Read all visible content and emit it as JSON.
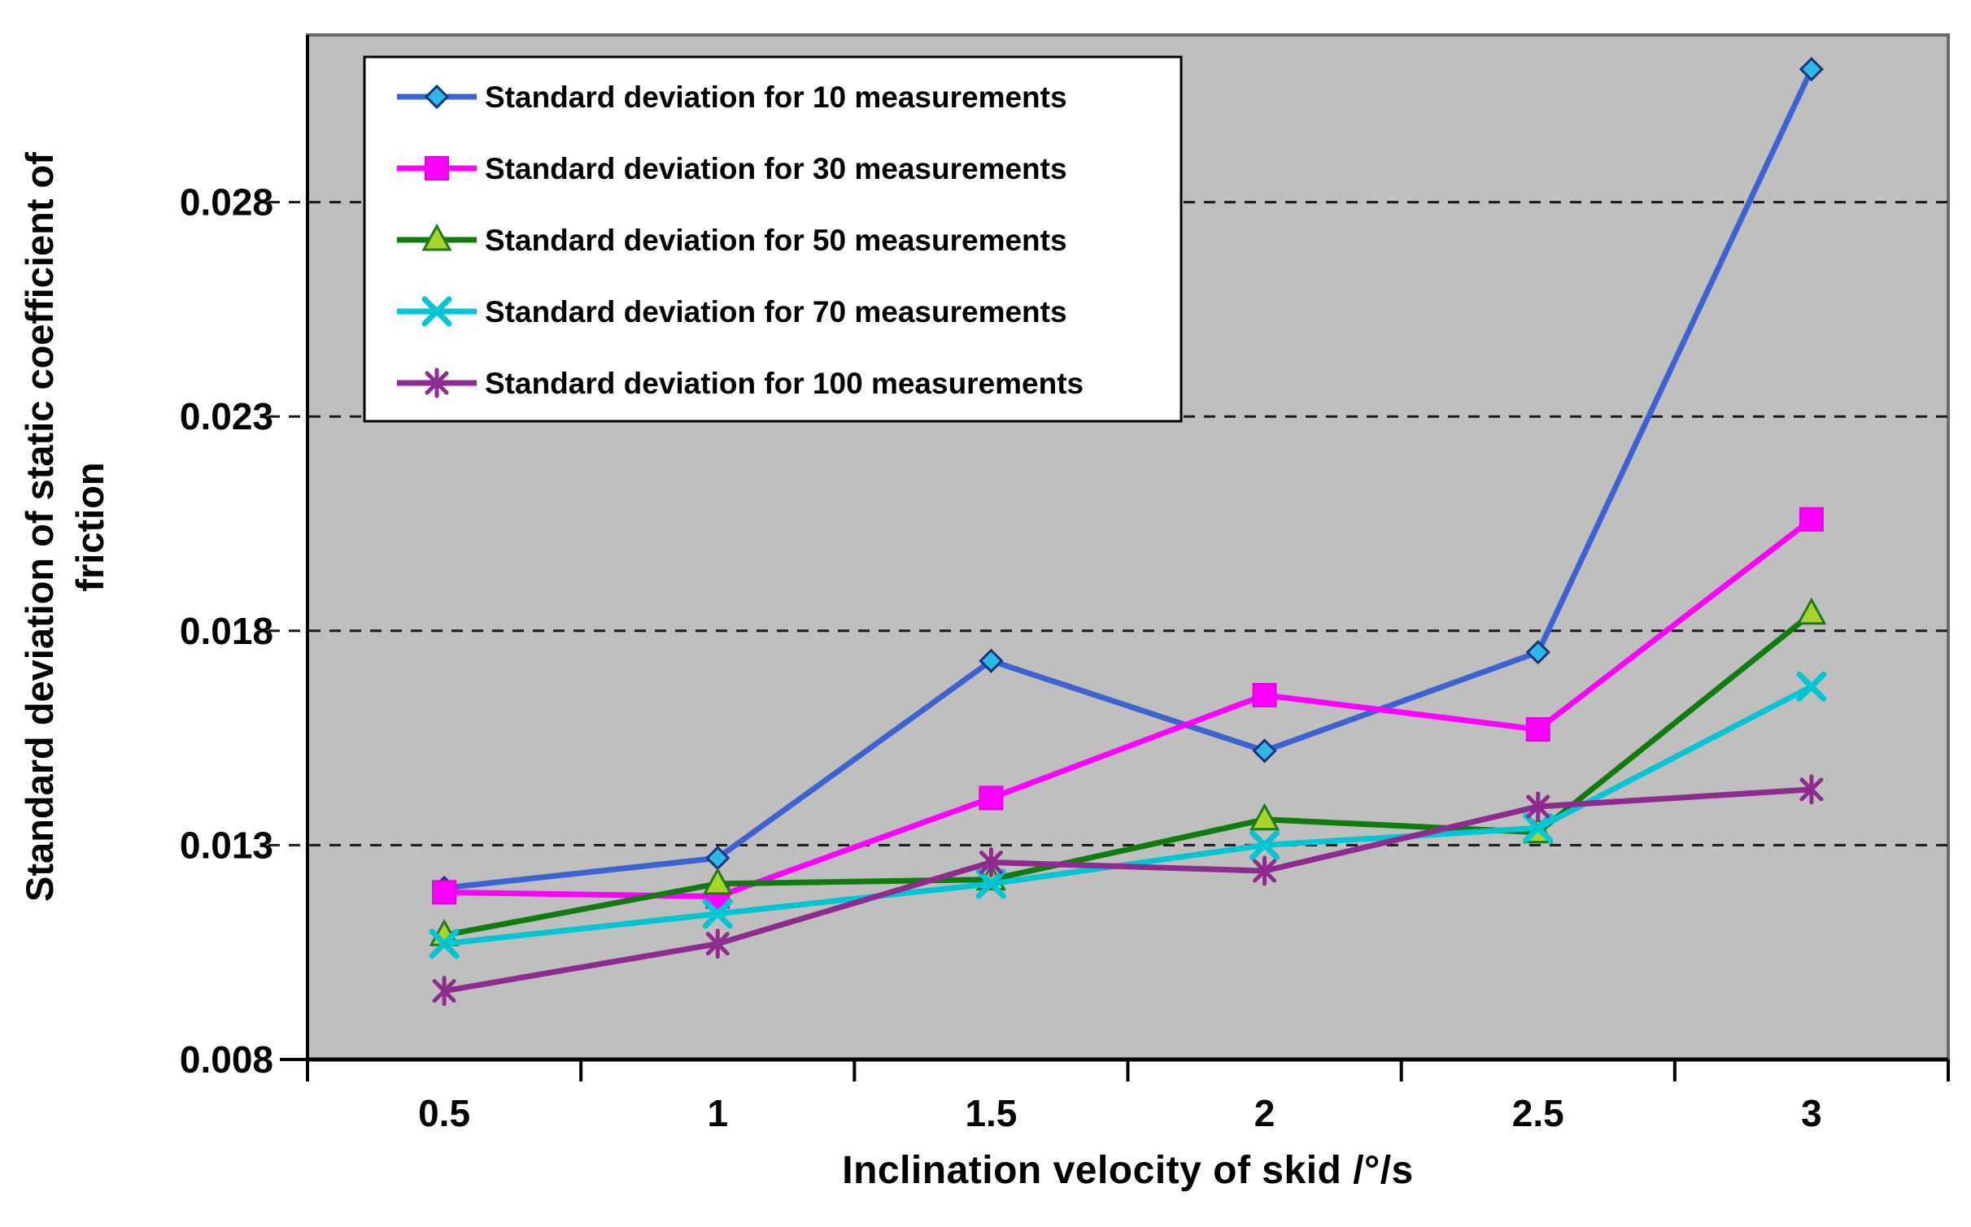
{
  "figure": {
    "x_axis_title": "Inclination velocity of skid /°/s",
    "y_axis_title": "Standard deviation of static coefficient of friction",
    "y_axis_title_lines": [
      "Standard deviation of static coefficient of",
      "friction"
    ]
  },
  "chart_data": {
    "type": "line",
    "title": "",
    "xlabel": "Inclination velocity of skid /°/s",
    "ylabel": "Standard deviation of static coefficient of friction",
    "x": [
      0.5,
      1,
      1.5,
      2,
      2.5,
      3
    ],
    "x_tick_labels": [
      "0.5",
      "1",
      "1.5",
      "2",
      "2.5",
      "3"
    ],
    "y_ticks": [
      0.008,
      0.013,
      0.018,
      0.023,
      0.028
    ],
    "y_tick_labels": [
      "0.008",
      "0.013",
      "0.018",
      "0.023",
      "0.028"
    ],
    "ylim": [
      0.008,
      0.0319
    ],
    "grid": "horizontal-dashed",
    "legend_position": "top-left-inside",
    "plot_background": "#bfbfbf",
    "page_background": "#ffffff",
    "gridline_color": "#1a1a1a",
    "axis_color": "#000000",
    "plot_border_color": "#6a6a6a",
    "legend_border_color": "#000000",
    "legend_fill": "#fefefe",
    "series": [
      {
        "name": "Standard deviation for 10 measurements",
        "marker": "diamond",
        "color": "#3f62d2",
        "marker_fill": "#2eb8e6",
        "marker_edge": "#17357e",
        "values": [
          0.012,
          0.0127,
          0.0173,
          0.0152,
          0.0175,
          0.0311
        ]
      },
      {
        "name": "Standard deviation for 30 measurements",
        "marker": "square",
        "color": "#ff00ff",
        "marker_fill": "#ff00ff",
        "marker_edge": "#e000e0",
        "values": [
          0.0119,
          0.0118,
          0.0141,
          0.0165,
          0.0157,
          0.0206
        ]
      },
      {
        "name": "Standard deviation for 50 measurements",
        "marker": "triangle-up",
        "color": "#107c10",
        "marker_fill": "#a9d52b",
        "marker_edge": "#1f7a1f",
        "values": [
          0.0109,
          0.0121,
          0.0122,
          0.0136,
          0.0133,
          0.0184
        ]
      },
      {
        "name": "Standard deviation for 70 measurements",
        "marker": "x",
        "color": "#00c6d4",
        "marker_fill": "#00c6d4",
        "marker_edge": "#00c6d4",
        "values": [
          0.0107,
          0.0114,
          0.0121,
          0.013,
          0.0134,
          0.0167
        ]
      },
      {
        "name": "Standard deviation for 100 measurements",
        "marker": "asterisk",
        "color": "#8e2b8e",
        "marker_fill": "#8e2b8e",
        "marker_edge": "#8e2b8e",
        "values": [
          0.0096,
          0.0107,
          0.0126,
          0.0124,
          0.0139,
          0.0143
        ]
      }
    ]
  }
}
